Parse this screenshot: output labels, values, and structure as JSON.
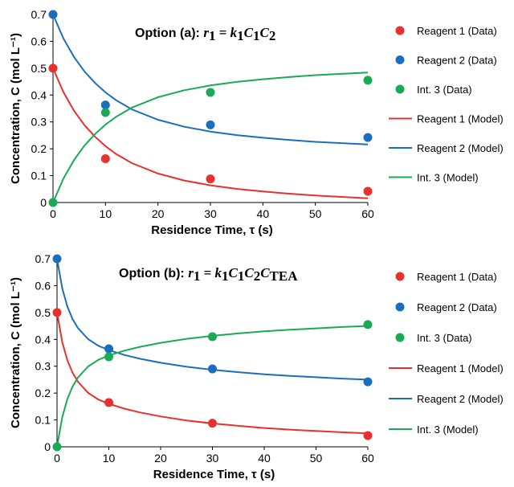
{
  "chart_data": [
    {
      "type": "scatter",
      "annotation": {
        "label": "Option (a): ",
        "equation": [
          {
            "t": "r",
            "i": true
          },
          {
            "t": "1",
            "sub": true
          },
          {
            "t": " = "
          },
          {
            "t": "k",
            "i": true
          },
          {
            "t": "1",
            "sub": true
          },
          {
            "t": "C",
            "i": true
          },
          {
            "t": "1",
            "sub": true
          },
          {
            "t": "C",
            "i": true
          },
          {
            "t": "2",
            "sub": true
          }
        ]
      },
      "xlabel": "Residence Time, τ (s)",
      "ylabel": "Concentration, C (mol L⁻¹)",
      "xlim": [
        0,
        60
      ],
      "ylim": [
        0,
        0.7
      ],
      "xticks": [
        0,
        10,
        20,
        30,
        40,
        50,
        60
      ],
      "yticks": [
        0,
        0.1,
        0.2,
        0.3,
        0.4,
        0.5,
        0.6,
        0.7
      ],
      "legend_position": "right",
      "series": [
        {
          "name": "Reagent 1 (Data)",
          "kind": "points",
          "color": "#e8312f",
          "x": [
            0,
            10,
            30,
            60
          ],
          "y": [
            0.5,
            0.163,
            0.088,
            0.042
          ]
        },
        {
          "name": "Reagent 2 (Data)",
          "kind": "points",
          "color": "#1a6fbd",
          "x": [
            0,
            10,
            30,
            60
          ],
          "y": [
            0.7,
            0.363,
            0.289,
            0.242
          ]
        },
        {
          "name": "Int. 3 (Data)",
          "kind": "points",
          "color": "#1aaa55",
          "x": [
            0,
            10,
            30,
            60
          ],
          "y": [
            0.0,
            0.335,
            0.41,
            0.455
          ]
        },
        {
          "name": "Reagent 1 (Model)",
          "kind": "line",
          "color": "#e8312f",
          "x": [
            0,
            2,
            4,
            6,
            8,
            10,
            12,
            15,
            20,
            25,
            30,
            35,
            40,
            45,
            50,
            55,
            60
          ],
          "y": [
            0.5,
            0.41,
            0.342,
            0.288,
            0.245,
            0.21,
            0.181,
            0.147,
            0.108,
            0.082,
            0.064,
            0.051,
            0.041,
            0.033,
            0.026,
            0.021,
            0.016
          ]
        },
        {
          "name": "Reagent 2 (Model)",
          "kind": "line",
          "color": "#1a6fbd",
          "x": [
            0,
            2,
            4,
            6,
            8,
            10,
            12,
            15,
            20,
            25,
            30,
            35,
            40,
            45,
            50,
            55,
            60
          ],
          "y": [
            0.7,
            0.61,
            0.542,
            0.488,
            0.445,
            0.41,
            0.381,
            0.347,
            0.308,
            0.282,
            0.264,
            0.251,
            0.241,
            0.233,
            0.226,
            0.221,
            0.216
          ]
        },
        {
          "name": "Int. 3 (Model)",
          "kind": "line",
          "color": "#1aaa55",
          "x": [
            0,
            2,
            4,
            6,
            8,
            10,
            12,
            15,
            20,
            25,
            30,
            35,
            40,
            45,
            50,
            55,
            60
          ],
          "y": [
            0.0,
            0.09,
            0.158,
            0.212,
            0.255,
            0.29,
            0.319,
            0.353,
            0.392,
            0.418,
            0.436,
            0.449,
            0.459,
            0.467,
            0.474,
            0.479,
            0.484
          ]
        }
      ]
    },
    {
      "type": "scatter",
      "annotation": {
        "label": "Option (b): ",
        "equation": [
          {
            "t": "r",
            "i": true
          },
          {
            "t": "1",
            "sub": true
          },
          {
            "t": " = "
          },
          {
            "t": "k",
            "i": true
          },
          {
            "t": "1",
            "sub": true
          },
          {
            "t": "C",
            "i": true
          },
          {
            "t": "1",
            "sub": true
          },
          {
            "t": "C",
            "i": true
          },
          {
            "t": "2",
            "sub": true
          },
          {
            "t": "C",
            "i": true
          },
          {
            "t": "TEA",
            "sub": true
          }
        ]
      },
      "xlabel": "Residence Time, τ (s)",
      "ylabel": "Concentration, C (mol L⁻¹)",
      "xlim": [
        0,
        60
      ],
      "ylim": [
        0,
        0.7
      ],
      "xticks": [
        0,
        10,
        20,
        30,
        40,
        50,
        60
      ],
      "yticks": [
        0,
        0.1,
        0.2,
        0.3,
        0.4,
        0.5,
        0.6,
        0.7
      ],
      "legend_position": "right",
      "series": [
        {
          "name": "Reagent 1 (Data)",
          "kind": "points",
          "color": "#e8312f",
          "x": [
            0,
            10,
            30,
            60
          ],
          "y": [
            0.5,
            0.165,
            0.088,
            0.042
          ]
        },
        {
          "name": "Reagent 2 (Data)",
          "kind": "points",
          "color": "#1a6fbd",
          "x": [
            0,
            10,
            30,
            60
          ],
          "y": [
            0.7,
            0.365,
            0.29,
            0.242
          ]
        },
        {
          "name": "Int. 3 (Data)",
          "kind": "points",
          "color": "#1aaa55",
          "x": [
            0,
            10,
            30,
            60
          ],
          "y": [
            0.0,
            0.335,
            0.41,
            0.455
          ]
        },
        {
          "name": "Reagent 1 (Model)",
          "kind": "line",
          "color": "#e8312f",
          "x": [
            0,
            1,
            2,
            3,
            4,
            6,
            8,
            10,
            13,
            16,
            20,
            25,
            30,
            35,
            40,
            45,
            50,
            55,
            60
          ],
          "y": [
            0.5,
            0.39,
            0.322,
            0.276,
            0.243,
            0.201,
            0.176,
            0.16,
            0.142,
            0.128,
            0.113,
            0.098,
            0.087,
            0.078,
            0.07,
            0.064,
            0.059,
            0.054,
            0.05
          ]
        },
        {
          "name": "Reagent 2 (Model)",
          "kind": "line",
          "color": "#1a6fbd",
          "x": [
            0,
            1,
            2,
            3,
            4,
            6,
            8,
            10,
            13,
            16,
            20,
            25,
            30,
            35,
            40,
            45,
            50,
            55,
            60
          ],
          "y": [
            0.7,
            0.59,
            0.522,
            0.476,
            0.443,
            0.401,
            0.376,
            0.36,
            0.342,
            0.328,
            0.313,
            0.298,
            0.287,
            0.278,
            0.27,
            0.264,
            0.259,
            0.254,
            0.25
          ]
        },
        {
          "name": "Int. 3 (Model)",
          "kind": "line",
          "color": "#1aaa55",
          "x": [
            0,
            1,
            2,
            3,
            4,
            6,
            8,
            10,
            13,
            16,
            20,
            25,
            30,
            35,
            40,
            45,
            50,
            55,
            60
          ],
          "y": [
            0.0,
            0.11,
            0.178,
            0.224,
            0.257,
            0.299,
            0.324,
            0.34,
            0.358,
            0.372,
            0.387,
            0.402,
            0.413,
            0.422,
            0.43,
            0.436,
            0.441,
            0.446,
            0.45
          ]
        }
      ]
    }
  ]
}
